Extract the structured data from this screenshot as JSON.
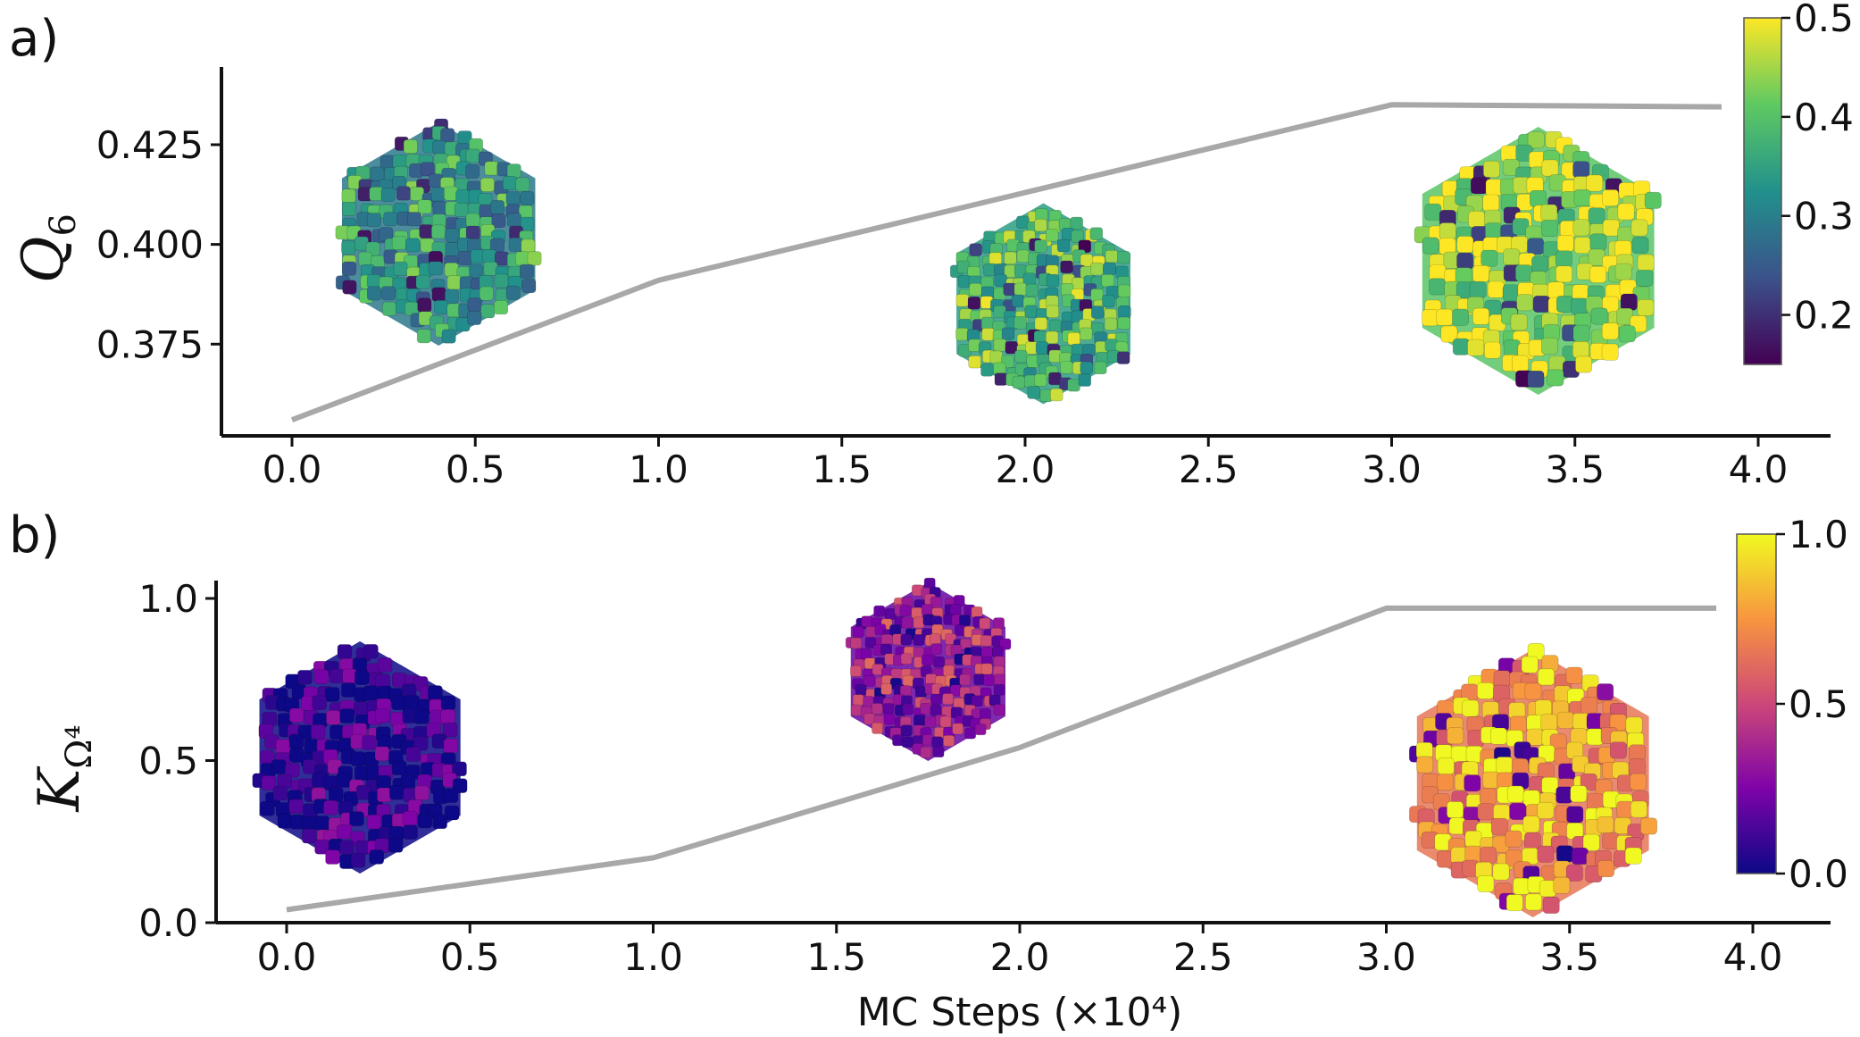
{
  "chart_data": [
    {
      "panel": "a)",
      "type": "line",
      "xlabel": "",
      "ylabel": "Q",
      "ylabel_sub": "6",
      "x": [
        0.0,
        1.0,
        2.0,
        3.0,
        3.9
      ],
      "series": [
        {
          "values": [
            0.356,
            0.391,
            0.413,
            0.435,
            0.4345
          ],
          "color": "#a8a8a8"
        }
      ],
      "xlim": [
        -0.2,
        4.2
      ],
      "ylim": [
        0.352,
        0.44
      ],
      "xticks": [
        0.0,
        0.5,
        1.0,
        1.5,
        2.0,
        2.5,
        3.0,
        3.5,
        4.0
      ],
      "xtick_labels": [
        "0.0",
        "0.5",
        "1.0",
        "1.5",
        "2.0",
        "2.5",
        "3.0",
        "3.5",
        "4.0"
      ],
      "yticks": [
        0.375,
        0.4,
        0.425
      ],
      "ytick_labels": [
        "0.375",
        "0.400",
        "0.425"
      ],
      "colorbar": {
        "colormap": "viridis",
        "range": [
          0.15,
          0.5
        ],
        "ticks": [
          0.2,
          0.3,
          0.4,
          0.5
        ],
        "tick_labels": [
          "0.2",
          "0.3",
          "0.4",
          "0.5"
        ]
      },
      "insets": [
        {
          "at_x": 0.4,
          "cluster": "cube",
          "colormap": "viridis",
          "bias": 0.55
        },
        {
          "at_x": 2.05,
          "cluster": "cube",
          "colormap": "viridis",
          "bias": 0.7
        },
        {
          "at_x": 3.4,
          "cluster": "cube",
          "colormap": "viridis",
          "bias": 0.88
        }
      ]
    },
    {
      "panel": "b)",
      "type": "line",
      "xlabel": "MC Steps (×10⁴)",
      "ylabel": "K",
      "ylabel_sub": "Ω⁴",
      "x": [
        0.0,
        1.0,
        2.0,
        3.0,
        3.9
      ],
      "series": [
        {
          "values": [
            0.04,
            0.2,
            0.54,
            0.97,
            0.97
          ],
          "color": "#a8a8a8"
        }
      ],
      "xlim": [
        -0.2,
        4.2
      ],
      "ylim": [
        0.0,
        1.0
      ],
      "xticks": [
        0.0,
        0.5,
        1.0,
        1.5,
        2.0,
        2.5,
        3.0,
        3.5,
        4.0
      ],
      "xtick_labels": [
        "0.0",
        "0.5",
        "1.0",
        "1.5",
        "2.0",
        "2.5",
        "3.0",
        "3.5",
        "4.0"
      ],
      "yticks": [
        0.0,
        0.5,
        1.0
      ],
      "ytick_labels": [
        "0.0",
        "0.5",
        "1.0"
      ],
      "colorbar": {
        "colormap": "plasma",
        "range": [
          0.0,
          1.0
        ],
        "ticks": [
          0.0,
          0.5,
          1.0
        ],
        "tick_labels": [
          "0.0",
          "0.5",
          "1.0"
        ]
      },
      "insets": [
        {
          "at_x": 0.2,
          "cluster": "cube",
          "colormap": "plasma",
          "bias": 0.05
        },
        {
          "at_x": 1.75,
          "cluster": "cube",
          "colormap": "plasma",
          "bias": 0.35
        },
        {
          "at_x": 3.4,
          "cluster": "cube",
          "colormap": "plasma",
          "bias": 0.8
        }
      ]
    }
  ]
}
